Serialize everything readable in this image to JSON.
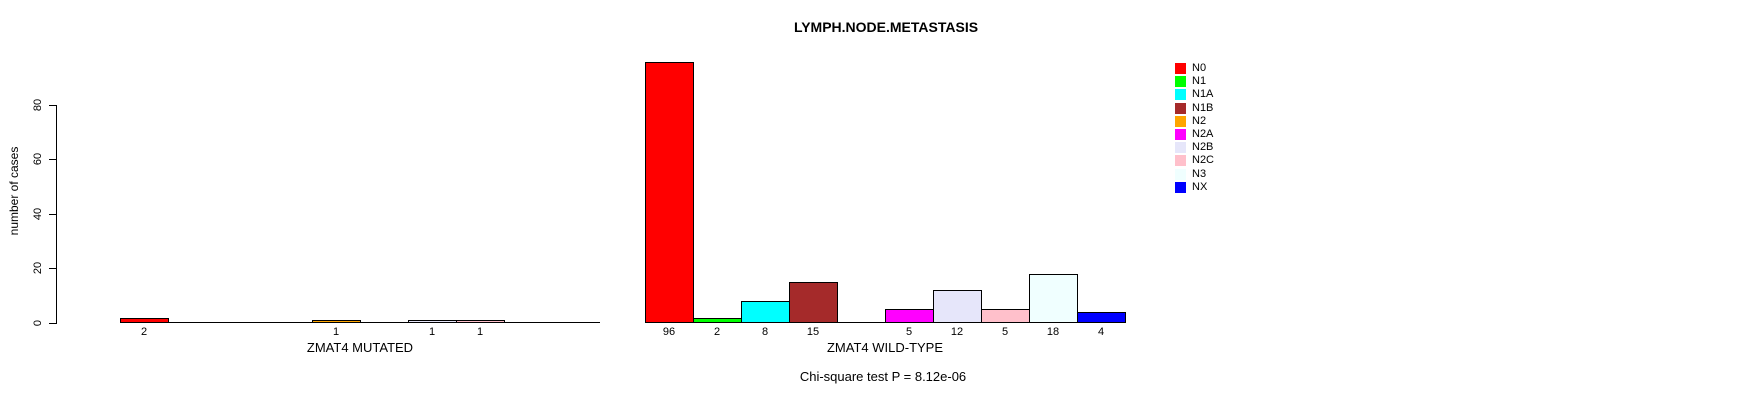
{
  "chart_data": {
    "type": "bar",
    "title": "LYMPH.NODE.METASTASIS",
    "ylabel": "number of cases",
    "xlabel": "",
    "yticks": [
      0,
      20,
      40,
      60,
      80
    ],
    "ylim": [
      0,
      97
    ],
    "grid": false,
    "categories": [
      "N0",
      "N1",
      "N1A",
      "N1B",
      "N2",
      "N2A",
      "N2B",
      "N2C",
      "N3",
      "NX"
    ],
    "groups": [
      {
        "label": "ZMAT4 MUTATED",
        "values": [
          2,
          0,
          0,
          0,
          1,
          0,
          1,
          1,
          0,
          0
        ]
      },
      {
        "label": "ZMAT4 WILD-TYPE",
        "values": [
          96,
          2,
          8,
          15,
          0,
          5,
          12,
          5,
          18,
          4
        ]
      }
    ],
    "bar_labels": {
      "note": "numeric value shown under each nonzero bar",
      "mutated": [
        "2",
        "1",
        "1",
        "1"
      ],
      "wild_type": [
        "96",
        "2",
        "8",
        "15",
        "5",
        "12",
        "5",
        "18",
        "4"
      ]
    },
    "legend": {
      "position": "right",
      "entries": [
        {
          "label": "N0",
          "color": "#FF0000"
        },
        {
          "label": "N1",
          "color": "#00FF00"
        },
        {
          "label": "N1A",
          "color": "#00FFFF"
        },
        {
          "label": "N1B",
          "color": "#A52A2A"
        },
        {
          "label": "N2",
          "color": "#FFA500"
        },
        {
          "label": "N2A",
          "color": "#FF00FF"
        },
        {
          "label": "N2B",
          "color": "#E6E6FA"
        },
        {
          "label": "N2C",
          "color": "#FFC0CB"
        },
        {
          "label": "N3",
          "color": "#F0FFFF"
        },
        {
          "label": "NX",
          "color": "#0000FF"
        }
      ]
    },
    "footnote": "Chi-square test P = 8.12e-06",
    "axis_color": "#000000",
    "background_color": "#FFFFFF"
  }
}
